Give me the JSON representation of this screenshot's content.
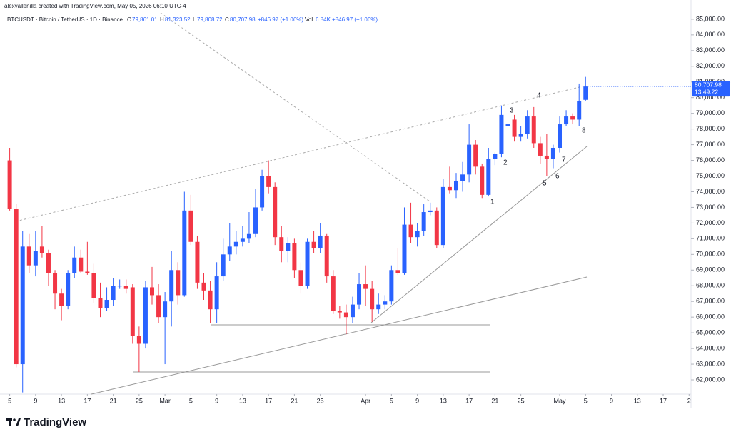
{
  "credit": "alexvallenilla created with TradingView.com, May 05, 2026 06:10 UTC-4",
  "legend": {
    "symbol": "BTCUSDT · Bitcoin / TetherUS · 1D · Binance",
    "ohlc": [
      {
        "key": "O",
        "value": "79,861.01"
      },
      {
        "key": "H",
        "value": "81,323.52"
      },
      {
        "key": "L",
        "value": "79,808.72"
      },
      {
        "key": "C",
        "value": "80,707.98"
      }
    ],
    "change": "+846.97 (+1.06%)",
    "vol_key": "Vol",
    "vol": "6.84K",
    "vol_change": "+846.97 (+1.06%)"
  },
  "annotations": [
    "1",
    "2",
    "3",
    "4",
    "5",
    "6",
    "7",
    "8"
  ],
  "footer": {
    "logo": "TradingView"
  },
  "chart_data": {
    "type": "candlestick",
    "up_color": "#2962ff",
    "down_color": "#f23645",
    "last_price_label": "80,707.98",
    "countdown": "13:49:22",
    "open": [
      76000,
      72900,
      63000,
      70500,
      69300,
      70500,
      70100,
      68800,
      67500,
      66700,
      68800,
      69800,
      68900,
      68800,
      67200,
      66600,
      67100,
      68000,
      68000,
      67900,
      64800,
      64300,
      67900,
      67400,
      66000,
      67000,
      69000,
      67400,
      72800,
      70800,
      68200,
      67700,
      66500,
      68600,
      70000,
      70500,
      70800,
      71000,
      71300,
      73000,
      75000,
      74300,
      71100,
      70200,
      70700,
      69000,
      68000,
      70800,
      70400,
      71200,
      68600,
      66400,
      66300,
      66000,
      66800,
      68100,
      67800,
      66500,
      66800,
      67000,
      69000,
      68800,
      71900,
      71100,
      71500,
      72700,
      72800,
      70600,
      74300,
      74100,
      74700,
      75100,
      77000,
      75600,
      73800,
      76100,
      76400,
      78200,
      78600,
      77500,
      77700,
      78800,
      77100,
      76300,
      76100,
      76800,
      78300,
      78800,
      78600,
      79861.01
    ],
    "high": [
      76800,
      73200,
      71500,
      71300,
      71500,
      71800,
      70300,
      69000,
      67800,
      69000,
      70500,
      70300,
      70800,
      69400,
      68200,
      67900,
      68500,
      68400,
      68400,
      68100,
      65400,
      68300,
      69200,
      68100,
      67600,
      70200,
      69500,
      74000,
      73800,
      71200,
      68800,
      68300,
      69500,
      71000,
      72000,
      71500,
      71800,
      72700,
      74200,
      75400,
      76000,
      74600,
      71800,
      71100,
      71000,
      69500,
      71000,
      71500,
      72000,
      71300,
      69000,
      66700,
      66800,
      67300,
      68800,
      69300,
      68300,
      67500,
      67400,
      69300,
      70400,
      73000,
      73300,
      72000,
      73200,
      73300,
      73000,
      74800,
      75600,
      75200,
      75900,
      78300,
      77300,
      75800,
      76800,
      76500,
      79500,
      79500,
      78900,
      78200,
      79200,
      79400,
      77500,
      77700,
      77000,
      78800,
      79200,
      79000,
      80900,
      81323.52
    ],
    "low": [
      72800,
      62800,
      61200,
      68800,
      68600,
      69800,
      68000,
      66500,
      65800,
      66500,
      68500,
      68800,
      68700,
      66900,
      66000,
      66400,
      66700,
      67800,
      67500,
      64300,
      62500,
      64000,
      66800,
      65600,
      63000,
      65400,
      66800,
      67300,
      70600,
      67800,
      67100,
      65600,
      65600,
      68300,
      69600,
      70000,
      70500,
      70700,
      71100,
      72800,
      73900,
      70600,
      69500,
      69500,
      68500,
      67500,
      67800,
      70100,
      70100,
      68200,
      66200,
      65900,
      64900,
      65600,
      66500,
      66700,
      65700,
      66200,
      66500,
      66800,
      68700,
      68700,
      70700,
      70500,
      71200,
      72500,
      70400,
      70400,
      73900,
      73600,
      74000,
      74600,
      75100,
      73600,
      73700,
      75700,
      76200,
      77900,
      77200,
      77200,
      77400,
      76800,
      75800,
      75000,
      75500,
      76500,
      78200,
      78300,
      78200,
      79808.72
    ],
    "close": [
      72900,
      63000,
      70500,
      69300,
      70200,
      70100,
      68800,
      67500,
      66700,
      68800,
      69800,
      68900,
      68800,
      67200,
      66600,
      67100,
      68000,
      68000,
      67800,
      64800,
      64300,
      67900,
      67400,
      66000,
      67000,
      69000,
      67400,
      72800,
      70800,
      68200,
      67700,
      66500,
      68600,
      70000,
      70500,
      70800,
      71000,
      71300,
      73000,
      75000,
      74300,
      71100,
      70200,
      70700,
      69000,
      68000,
      70800,
      70400,
      71200,
      68600,
      66400,
      66300,
      66000,
      66800,
      68100,
      67800,
      66500,
      66800,
      67000,
      69000,
      68800,
      71900,
      71100,
      71500,
      72700,
      72800,
      70600,
      74300,
      74100,
      74700,
      75100,
      77000,
      75600,
      73800,
      76100,
      76400,
      78900,
      78300,
      77500,
      77700,
      78800,
      77100,
      76300,
      76100,
      76800,
      78300,
      78800,
      78600,
      79800,
      80707.98
    ],
    "xlim": [
      -1.5,
      105.3
    ],
    "xticks": [
      {
        "value": 0,
        "label": "5"
      },
      {
        "value": 4,
        "label": "9"
      },
      {
        "value": 8,
        "label": "13"
      },
      {
        "value": 12,
        "label": "17"
      },
      {
        "value": 16,
        "label": "21"
      },
      {
        "value": 20,
        "label": "25"
      },
      {
        "value": 24,
        "label": "Mar"
      },
      {
        "value": 28,
        "label": "5"
      },
      {
        "value": 32,
        "label": "9"
      },
      {
        "value": 36,
        "label": "13"
      },
      {
        "value": 40,
        "label": "17"
      },
      {
        "value": 44,
        "label": "21"
      },
      {
        "value": 48,
        "label": "25"
      },
      {
        "value": 55,
        "label": "Apr"
      },
      {
        "value": 59,
        "label": "5"
      },
      {
        "value": 63,
        "label": "9"
      },
      {
        "value": 67,
        "label": "13"
      },
      {
        "value": 71,
        "label": "17"
      },
      {
        "value": 75,
        "label": "21"
      },
      {
        "value": 79,
        "label": "25"
      },
      {
        "value": 85,
        "label": "May"
      },
      {
        "value": 89,
        "label": "5"
      },
      {
        "value": 93,
        "label": "9"
      },
      {
        "value": 97,
        "label": "13"
      },
      {
        "value": 101,
        "label": "17"
      },
      {
        "value": 105,
        "label": "2"
      }
    ],
    "ylim": [
      61090,
      86225
    ],
    "yticks": [
      {
        "value": 62000,
        "label": "62,000.00"
      },
      {
        "value": 63000,
        "label": "63,000.00"
      },
      {
        "value": 64000,
        "label": "64,000.00"
      },
      {
        "value": 65000,
        "label": "65,000.00"
      },
      {
        "value": 66000,
        "label": "66,000.00"
      },
      {
        "value": 67000,
        "label": "67,000.00"
      },
      {
        "value": 68000,
        "label": "68,000.00"
      },
      {
        "value": 69000,
        "label": "69,000.00"
      },
      {
        "value": 70000,
        "label": "70,000.00"
      },
      {
        "value": 71000,
        "label": "71,000.00"
      },
      {
        "value": 72000,
        "label": "72,000.00"
      },
      {
        "value": 73000,
        "label": "73,000.00"
      },
      {
        "value": 74000,
        "label": "74,000.00"
      },
      {
        "value": 75000,
        "label": "75,000.00"
      },
      {
        "value": 76000,
        "label": "76,000.00"
      },
      {
        "value": 77000,
        "label": "77,000.00"
      },
      {
        "value": 78000,
        "label": "78,000.00"
      },
      {
        "value": 79000,
        "label": "79,000.00"
      },
      {
        "value": 80000,
        "label": "80,000.00"
      },
      {
        "value": 81000,
        "label": "81,000.00"
      },
      {
        "value": 82000,
        "label": "82,000.00"
      },
      {
        "value": 83000,
        "label": "83,000.00"
      },
      {
        "value": 84000,
        "label": "84,000.00"
      },
      {
        "value": 85000,
        "label": "85,000.00"
      }
    ]
  }
}
